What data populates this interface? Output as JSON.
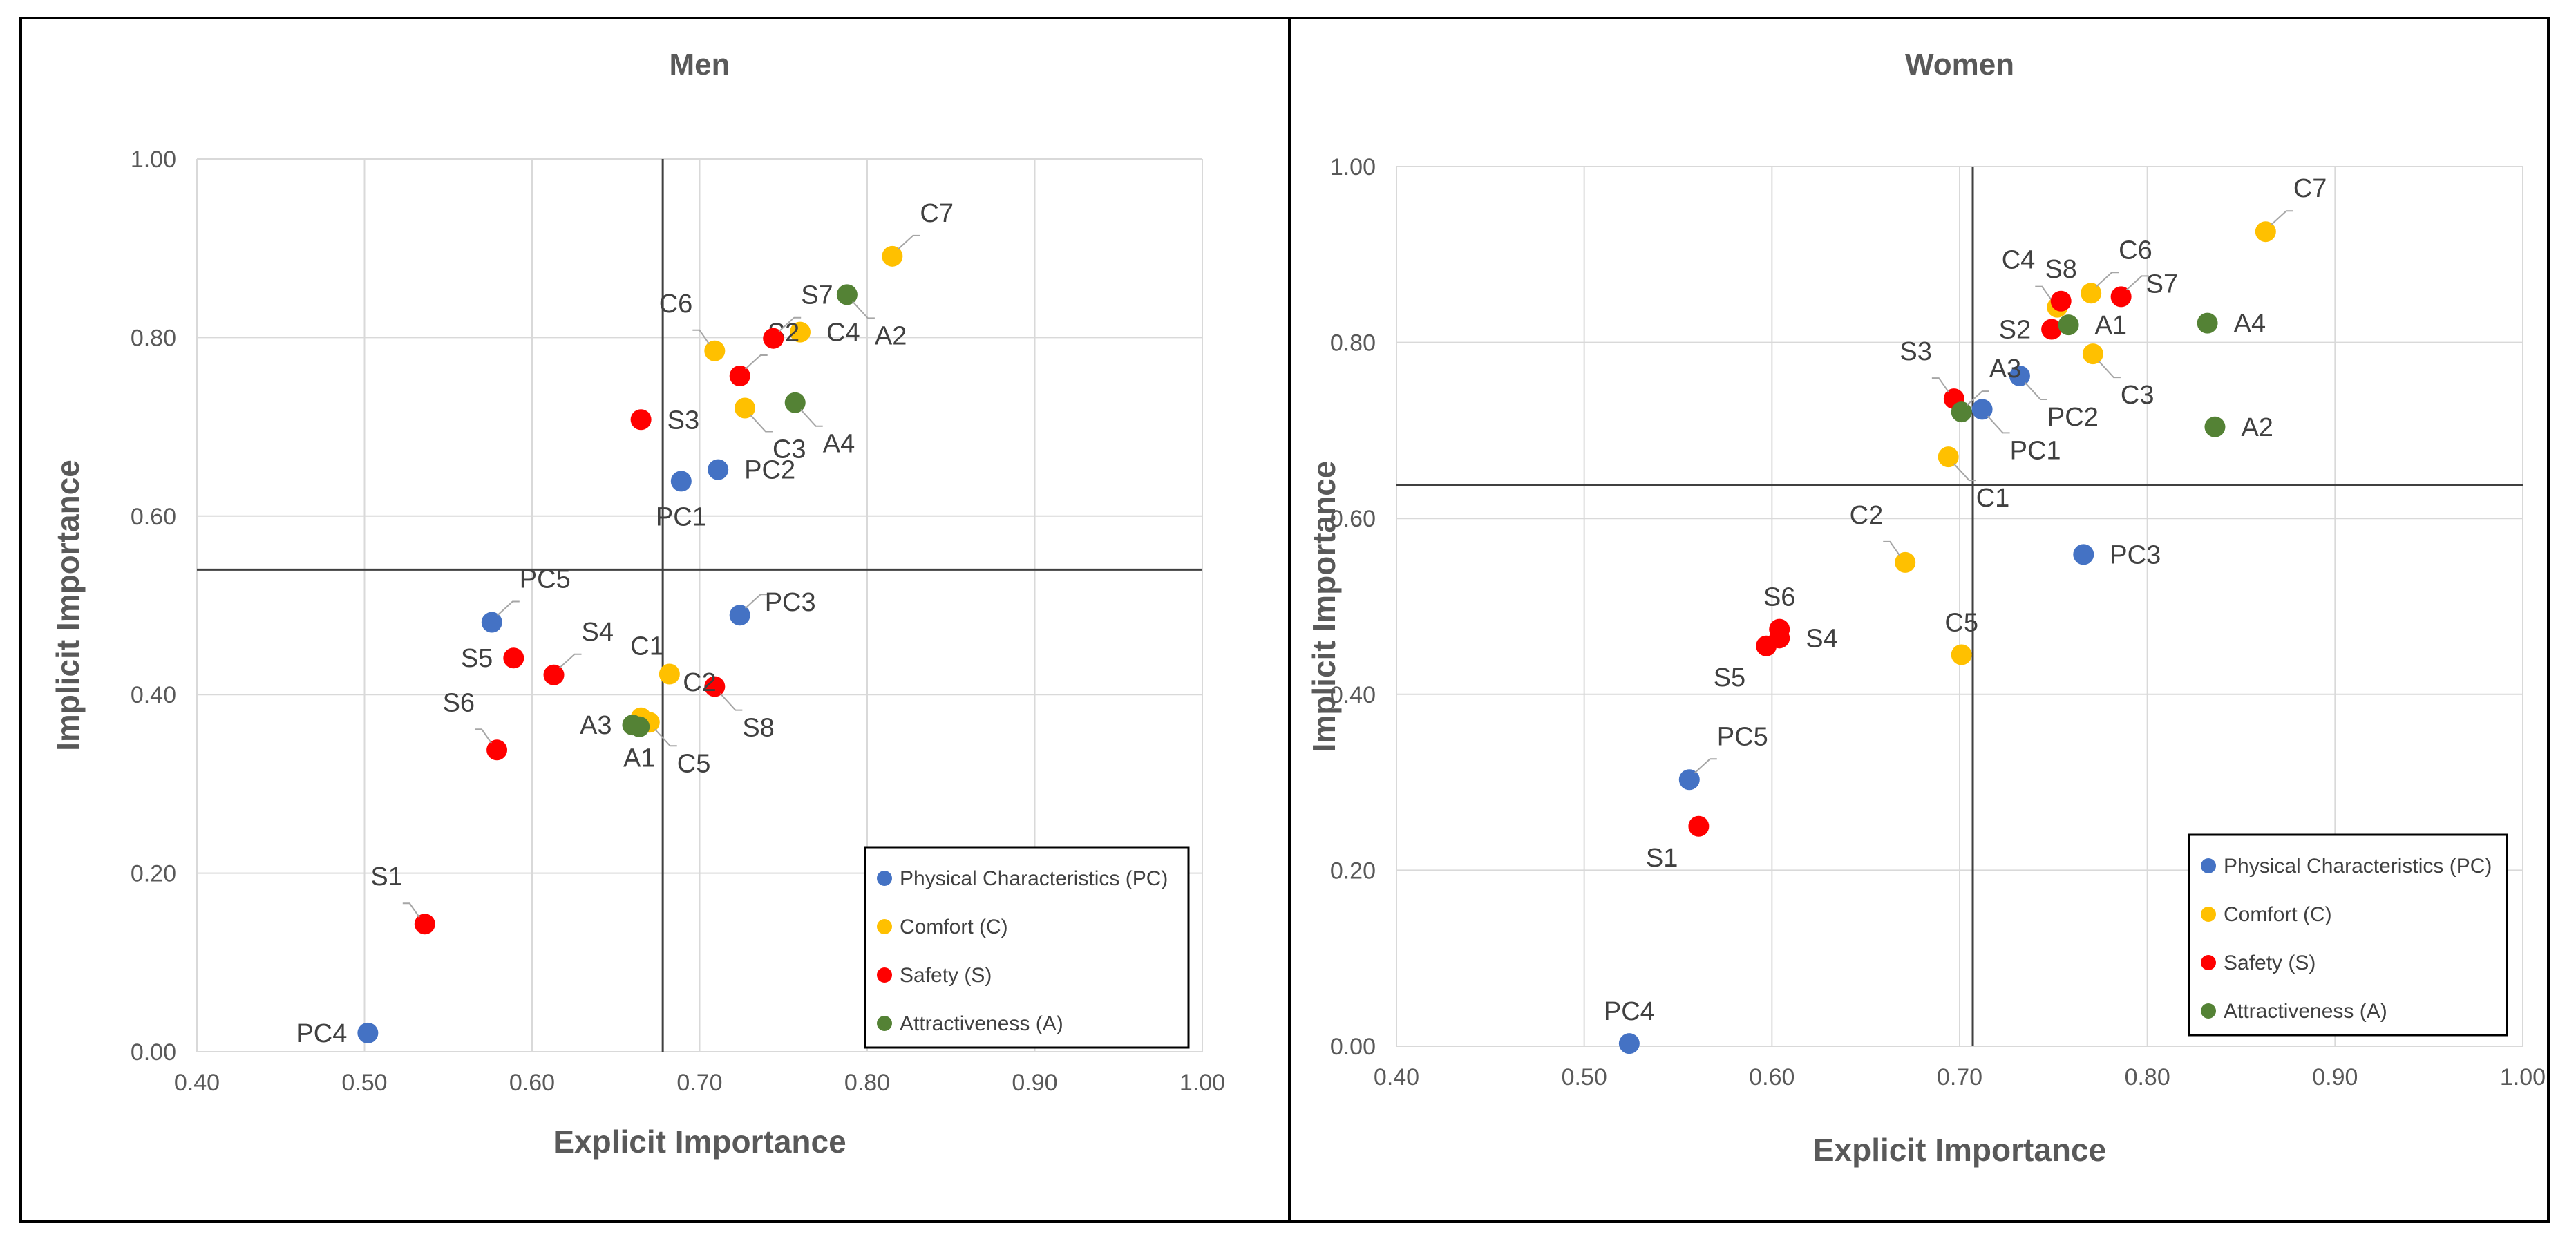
{
  "colors": {
    "PC": "#4472c4",
    "C": "#ffc000",
    "S": "#ff0000",
    "A": "#548235"
  },
  "chart_data": [
    {
      "type": "scatter",
      "title": "Men",
      "xlabel": "Explicit Importance",
      "ylabel": "Implicit Importance",
      "xlim": [
        0.4,
        1.0
      ],
      "ylim": [
        0.0,
        1.0
      ],
      "xticks": [
        "0.40",
        "0.50",
        "0.60",
        "0.70",
        "0.80",
        "0.90",
        "1.00"
      ],
      "yticks": [
        "0.00",
        "0.20",
        "0.40",
        "0.60",
        "0.80",
        "1.00"
      ],
      "ref_x": 0.678,
      "ref_y": 0.54,
      "legend_position": "bottom-right",
      "legend": [
        {
          "key": "PC",
          "label": "Physical Characteristics (PC)"
        },
        {
          "key": "C",
          "label": "Comfort (C)"
        },
        {
          "key": "S",
          "label": "Safety (S)"
        },
        {
          "key": "A",
          "label": "Attractiveness (A)"
        }
      ],
      "points": [
        {
          "label": "PC1",
          "group": "PC",
          "x": 0.689,
          "y": 0.639,
          "pos": "below"
        },
        {
          "label": "PC2",
          "group": "PC",
          "x": 0.711,
          "y": 0.652,
          "pos": "right"
        },
        {
          "label": "PC3",
          "group": "PC",
          "x": 0.724,
          "y": 0.489,
          "pos": "right-up"
        },
        {
          "label": "PC4",
          "group": "PC",
          "x": 0.502,
          "y": 0.021,
          "pos": "left"
        },
        {
          "label": "PC5",
          "group": "PC",
          "x": 0.576,
          "y": 0.481,
          "pos": "up-right"
        },
        {
          "label": "C1",
          "group": "C",
          "x": 0.682,
          "y": 0.423,
          "pos": "left-up"
        },
        {
          "label": "C2",
          "group": "C",
          "x": 0.665,
          "y": 0.374,
          "pos": "none"
        },
        {
          "label": "C3",
          "group": "C",
          "x": 0.727,
          "y": 0.721,
          "pos": "down-right"
        },
        {
          "label": "C4",
          "group": "C",
          "x": 0.76,
          "y": 0.806,
          "pos": "right"
        },
        {
          "label": "C5",
          "group": "C",
          "x": 0.67,
          "y": 0.369,
          "pos": "down-right"
        },
        {
          "label": "C6",
          "group": "C",
          "x": 0.709,
          "y": 0.785,
          "pos": "up-left"
        },
        {
          "label": "C7",
          "group": "C",
          "x": 0.815,
          "y": 0.891,
          "pos": "up-right"
        },
        {
          "label": "S1",
          "group": "S",
          "x": 0.536,
          "y": 0.143,
          "pos": "up-left"
        },
        {
          "label": "S2",
          "group": "S",
          "x": 0.724,
          "y": 0.757,
          "pos": "up-right"
        },
        {
          "label": "S3",
          "group": "S",
          "x": 0.665,
          "y": 0.708,
          "pos": "right"
        },
        {
          "label": "S4",
          "group": "S",
          "x": 0.613,
          "y": 0.422,
          "pos": "up-right"
        },
        {
          "label": "S5",
          "group": "S",
          "x": 0.589,
          "y": 0.441,
          "pos": "left"
        },
        {
          "label": "S6",
          "group": "S",
          "x": 0.579,
          "y": 0.338,
          "pos": "up-left"
        },
        {
          "label": "S7",
          "group": "S",
          "x": 0.744,
          "y": 0.799,
          "pos": "up-right"
        },
        {
          "label": "S8",
          "group": "S",
          "x": 0.709,
          "y": 0.409,
          "pos": "down-right"
        },
        {
          "label": "A1",
          "group": "A",
          "x": 0.664,
          "y": 0.364,
          "pos": "down"
        },
        {
          "label": "A2",
          "group": "A",
          "x": 0.788,
          "y": 0.848,
          "pos": "down-right"
        },
        {
          "label": "A3",
          "group": "A",
          "x": 0.66,
          "y": 0.366,
          "pos": "left"
        },
        {
          "label": "A4",
          "group": "A",
          "x": 0.757,
          "y": 0.727,
          "pos": "down-right"
        }
      ],
      "extra_labels": [
        {
          "text": "C2",
          "x": 0.7,
          "y": 0.414
        }
      ]
    },
    {
      "type": "scatter",
      "title": "Women",
      "xlabel": "Explicit Importance",
      "ylabel": "Implicit Importance",
      "xlim": [
        0.4,
        1.0
      ],
      "ylim": [
        0.0,
        1.0
      ],
      "xticks": [
        "0.40",
        "0.50",
        "0.60",
        "0.70",
        "0.80",
        "0.90",
        "1.00"
      ],
      "yticks": [
        "0.00",
        "0.20",
        "0.40",
        "0.60",
        "0.80",
        "1.00"
      ],
      "ref_x": 0.707,
      "ref_y": 0.638,
      "legend_position": "bottom-right",
      "legend": [
        {
          "key": "PC",
          "label": "Physical Characteristics (PC)"
        },
        {
          "key": "C",
          "label": "Comfort (C)"
        },
        {
          "key": "S",
          "label": "Safety (S)"
        },
        {
          "key": "A",
          "label": "Attractiveness (A)"
        }
      ],
      "points": [
        {
          "label": "PC1",
          "group": "PC",
          "x": 0.712,
          "y": 0.724,
          "pos": "down-right"
        },
        {
          "label": "PC2",
          "group": "PC",
          "x": 0.732,
          "y": 0.762,
          "pos": "down-right"
        },
        {
          "label": "PC3",
          "group": "PC",
          "x": 0.766,
          "y": 0.559,
          "pos": "right"
        },
        {
          "label": "PC4",
          "group": "PC",
          "x": 0.524,
          "y": 0.003,
          "pos": "up"
        },
        {
          "label": "PC5",
          "group": "PC",
          "x": 0.556,
          "y": 0.303,
          "pos": "up-right"
        },
        {
          "label": "C1",
          "group": "C",
          "x": 0.694,
          "y": 0.67,
          "pos": "down-right"
        },
        {
          "label": "C2",
          "group": "C",
          "x": 0.671,
          "y": 0.55,
          "pos": "up-left"
        },
        {
          "label": "C3",
          "group": "C",
          "x": 0.771,
          "y": 0.787,
          "pos": "down-right"
        },
        {
          "label": "C4",
          "group": "C",
          "x": 0.752,
          "y": 0.84,
          "pos": "up-left"
        },
        {
          "label": "C5",
          "group": "C",
          "x": 0.701,
          "y": 0.445,
          "pos": "up"
        },
        {
          "label": "C6",
          "group": "C",
          "x": 0.77,
          "y": 0.856,
          "pos": "up-right"
        },
        {
          "label": "C7",
          "group": "C",
          "x": 0.863,
          "y": 0.926,
          "pos": "up-right"
        },
        {
          "label": "S1",
          "group": "S",
          "x": 0.561,
          "y": 0.25,
          "pos": "down-left"
        },
        {
          "label": "S2",
          "group": "S",
          "x": 0.749,
          "y": 0.815,
          "pos": "left"
        },
        {
          "label": "S3",
          "group": "S",
          "x": 0.697,
          "y": 0.736,
          "pos": "up-left"
        },
        {
          "label": "S4",
          "group": "S",
          "x": 0.604,
          "y": 0.464,
          "pos": "right"
        },
        {
          "label": "S5",
          "group": "S",
          "x": 0.597,
          "y": 0.455,
          "pos": "down-left"
        },
        {
          "label": "S6",
          "group": "S",
          "x": 0.604,
          "y": 0.474,
          "pos": "up"
        },
        {
          "label": "S7",
          "group": "S",
          "x": 0.786,
          "y": 0.852,
          "pos": "right-up"
        },
        {
          "label": "S8",
          "group": "S",
          "x": 0.754,
          "y": 0.847,
          "pos": "up"
        },
        {
          "label": "A1",
          "group": "A",
          "x": 0.758,
          "y": 0.82,
          "pos": "right"
        },
        {
          "label": "A2",
          "group": "A",
          "x": 0.836,
          "y": 0.704,
          "pos": "right"
        },
        {
          "label": "A3",
          "group": "A",
          "x": 0.701,
          "y": 0.721,
          "pos": "up-right"
        },
        {
          "label": "A4",
          "group": "A",
          "x": 0.832,
          "y": 0.822,
          "pos": "right"
        }
      ],
      "extra_labels": []
    }
  ]
}
